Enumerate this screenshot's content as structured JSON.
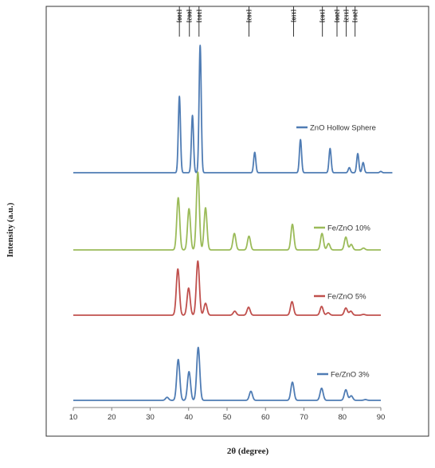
{
  "chart_data": {
    "type": "line",
    "xlabel": "2θ (degree)",
    "ylabel": "Intensity (a.u.)",
    "xlim": [
      10,
      90
    ],
    "x_ticks": [
      10,
      20,
      30,
      40,
      50,
      60,
      70,
      80,
      90
    ],
    "x_tick_labels": [
      "10",
      "20",
      "30",
      "40",
      "50",
      "60",
      "70",
      "80",
      "90"
    ],
    "grid": false,
    "legend": "inline labels next to each trace",
    "reflections": [
      {
        "label": "[100]",
        "x": 37.6
      },
      {
        "label": "[002]",
        "x": 40.2
      },
      {
        "label": "[101]",
        "x": 42.7
      },
      {
        "label": "[102]",
        "x": 55.7
      },
      {
        "label": "[110]",
        "x": 67.3
      },
      {
        "label": "[103]",
        "x": 74.8
      },
      {
        "label": "[200]",
        "x": 78.6
      },
      {
        "label": "[112]",
        "x": 81.0
      },
      {
        "label": "[201]",
        "x": 83.3
      }
    ],
    "series": [
      {
        "name": "ZnO Hollow Sphere",
        "color": "#4f7cb4",
        "baseline": 0.0,
        "x_span": [
          10,
          93
        ],
        "peaks": [
          {
            "x": 37.6,
            "y": 0.6
          },
          {
            "x": 41.0,
            "y": 0.45
          },
          {
            "x": 43.0,
            "y": 1.0
          },
          {
            "x": 57.2,
            "y": 0.16
          },
          {
            "x": 69.1,
            "y": 0.26
          },
          {
            "x": 76.8,
            "y": 0.19
          },
          {
            "x": 81.8,
            "y": 0.04
          },
          {
            "x": 84.0,
            "y": 0.15
          },
          {
            "x": 85.4,
            "y": 0.08
          },
          {
            "x": 90.0,
            "y": 0.01
          }
        ]
      },
      {
        "name": "Fe/ZnO 10%",
        "color": "#9bbb59",
        "baseline": 0.0,
        "x_span": [
          10,
          90
        ],
        "peaks": [
          {
            "x": 37.3,
            "y": 0.57
          },
          {
            "x": 40.1,
            "y": 0.45
          },
          {
            "x": 42.4,
            "y": 0.85
          },
          {
            "x": 44.4,
            "y": 0.46
          },
          {
            "x": 51.9,
            "y": 0.18
          },
          {
            "x": 55.7,
            "y": 0.15
          },
          {
            "x": 67.0,
            "y": 0.28
          },
          {
            "x": 74.7,
            "y": 0.18
          },
          {
            "x": 76.4,
            "y": 0.07
          },
          {
            "x": 80.9,
            "y": 0.14
          },
          {
            "x": 82.3,
            "y": 0.06
          },
          {
            "x": 85.5,
            "y": 0.02
          }
        ]
      },
      {
        "name": "Fe/ZnO 5%",
        "color": "#c0504d",
        "baseline": 0.0,
        "x_span": [
          10,
          90
        ],
        "peaks": [
          {
            "x": 37.2,
            "y": 0.58
          },
          {
            "x": 40.0,
            "y": 0.34
          },
          {
            "x": 42.4,
            "y": 0.68
          },
          {
            "x": 44.4,
            "y": 0.15
          },
          {
            "x": 52.0,
            "y": 0.05
          },
          {
            "x": 55.6,
            "y": 0.1
          },
          {
            "x": 66.9,
            "y": 0.17
          },
          {
            "x": 74.6,
            "y": 0.11
          },
          {
            "x": 76.3,
            "y": 0.03
          },
          {
            "x": 80.9,
            "y": 0.09
          },
          {
            "x": 82.2,
            "y": 0.05
          },
          {
            "x": 85.5,
            "y": 0.01
          }
        ]
      },
      {
        "name": "Fe/ZnO 3%",
        "color": "#4f7cb4",
        "baseline": 0.0,
        "x_span": [
          10,
          90
        ],
        "peaks": [
          {
            "x": 34.4,
            "y": 0.04
          },
          {
            "x": 37.3,
            "y": 0.54
          },
          {
            "x": 40.1,
            "y": 0.38
          },
          {
            "x": 42.5,
            "y": 0.7
          },
          {
            "x": 56.2,
            "y": 0.12
          },
          {
            "x": 67.0,
            "y": 0.24
          },
          {
            "x": 74.6,
            "y": 0.16
          },
          {
            "x": 80.9,
            "y": 0.14
          },
          {
            "x": 82.3,
            "y": 0.06
          },
          {
            "x": 86.0,
            "y": 0.01
          }
        ]
      }
    ]
  }
}
